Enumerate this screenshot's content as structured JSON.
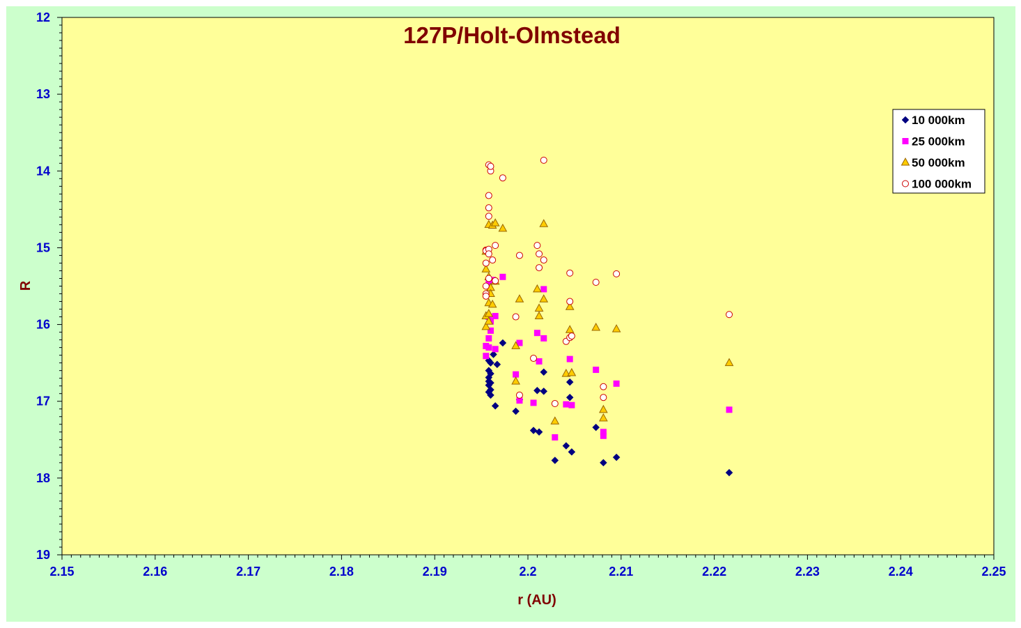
{
  "chart_data": {
    "type": "scatter",
    "title": "127P/Holt-Olmstead",
    "xlabel": "r (AU)",
    "ylabel": "R",
    "xlim": [
      2.15,
      2.25
    ],
    "ylim": [
      12,
      19
    ],
    "y_inverted": true,
    "x_ticks": [
      "2.15",
      "2.16",
      "2.17",
      "2.18",
      "2.19",
      "2.2",
      "2.21",
      "2.22",
      "2.23",
      "2.24",
      "2.25"
    ],
    "y_ticks": [
      "12",
      "13",
      "14",
      "15",
      "16",
      "17",
      "18",
      "19"
    ],
    "grid": false,
    "legend_position": "top-right",
    "colors": {
      "outer_background": "#ccffcc",
      "plot_background": "#ffff99",
      "title": "#800000",
      "tick_labels": "#0000cc"
    },
    "series": [
      {
        "name": "10 000km",
        "marker": "diamond",
        "color": "#000080",
        "x": [
          2.1958,
          2.1958,
          2.1958,
          2.1958,
          2.1958,
          2.1958,
          2.196,
          2.196,
          2.196,
          2.196,
          2.196,
          2.1963,
          2.1965,
          2.1967,
          2.1973,
          2.1987,
          2.1991,
          2.2006,
          2.201,
          2.2012,
          2.2017,
          2.2017,
          2.2029,
          2.2041,
          2.2045,
          2.2045,
          2.2047,
          2.2073,
          2.2081,
          2.2095,
          2.2216
        ],
        "y": [
          16.47,
          16.6,
          16.69,
          16.74,
          16.79,
          16.88,
          16.5,
          16.64,
          16.76,
          16.85,
          16.92,
          16.39,
          17.06,
          16.52,
          16.24,
          17.13,
          16.98,
          17.38,
          16.86,
          17.4,
          16.62,
          16.87,
          17.77,
          17.58,
          16.75,
          16.95,
          17.66,
          17.34,
          17.8,
          17.73,
          17.93
        ]
      },
      {
        "name": "25 000km",
        "marker": "square",
        "color": "#ff00ff",
        "x": [
          2.1955,
          2.1955,
          2.1958,
          2.1958,
          2.1958,
          2.1958,
          2.196,
          2.196,
          2.1962,
          2.1965,
          2.1965,
          2.1973,
          2.1987,
          2.1991,
          2.1991,
          2.2006,
          2.201,
          2.2012,
          2.2017,
          2.2017,
          2.2029,
          2.2041,
          2.2045,
          2.2047,
          2.2073,
          2.2081,
          2.2081,
          2.2095,
          2.2216
        ],
        "y": [
          16.28,
          16.41,
          15.45,
          15.9,
          16.18,
          16.3,
          15.96,
          16.08,
          15.42,
          15.89,
          16.32,
          15.38,
          16.65,
          16.24,
          16.99,
          17.02,
          16.11,
          16.48,
          15.54,
          16.18,
          17.47,
          17.04,
          16.45,
          17.05,
          16.59,
          17.4,
          17.45,
          16.77,
          17.11
        ]
      },
      {
        "name": "50 000km",
        "marker": "triangle",
        "color": "#ffcc00",
        "x": [
          2.1955,
          2.1955,
          2.1955,
          2.1955,
          2.1958,
          2.1958,
          2.1958,
          2.1958,
          2.1958,
          2.196,
          2.196,
          2.1962,
          2.1962,
          2.1965,
          2.1965,
          2.1973,
          2.1987,
          2.1987,
          2.1991,
          2.201,
          2.2012,
          2.2012,
          2.2017,
          2.2017,
          2.2029,
          2.2041,
          2.2045,
          2.2045,
          2.2047,
          2.2073,
          2.2081,
          2.2081,
          2.2095,
          2.2216
        ],
        "y": [
          15.05,
          15.28,
          15.89,
          16.03,
          14.7,
          15.38,
          15.72,
          15.86,
          15.96,
          15.52,
          15.6,
          14.71,
          15.74,
          14.68,
          15.44,
          14.75,
          16.28,
          16.74,
          15.67,
          15.54,
          15.79,
          15.89,
          14.69,
          15.67,
          17.26,
          16.64,
          15.77,
          16.07,
          16.63,
          16.04,
          17.11,
          17.22,
          16.06,
          16.5
        ]
      },
      {
        "name": "100 000km",
        "marker": "circle",
        "color": "#cc0000",
        "x": [
          2.1955,
          2.1955,
          2.1955,
          2.1955,
          2.1955,
          2.1955,
          2.1958,
          2.1958,
          2.1958,
          2.1958,
          2.1958,
          2.1958,
          2.1958,
          2.196,
          2.196,
          2.1962,
          2.1965,
          2.1965,
          2.1973,
          2.1987,
          2.1991,
          2.1991,
          2.2006,
          2.201,
          2.2012,
          2.2012,
          2.2017,
          2.2017,
          2.2029,
          2.2041,
          2.2045,
          2.2045,
          2.2045,
          2.2047,
          2.2073,
          2.2081,
          2.2081,
          2.2095,
          2.2216
        ],
        "y": [
          15.03,
          15.2,
          15.5,
          15.6,
          15.63,
          15.04,
          13.92,
          14.32,
          14.48,
          14.59,
          15.02,
          15.08,
          15.4,
          14.0,
          13.94,
          15.16,
          14.97,
          15.43,
          14.09,
          15.9,
          15.1,
          16.92,
          16.44,
          14.97,
          15.08,
          15.26,
          13.86,
          15.16,
          17.03,
          16.22,
          15.33,
          15.7,
          16.17,
          16.15,
          15.45,
          16.81,
          16.95,
          15.34,
          15.87
        ]
      }
    ]
  }
}
